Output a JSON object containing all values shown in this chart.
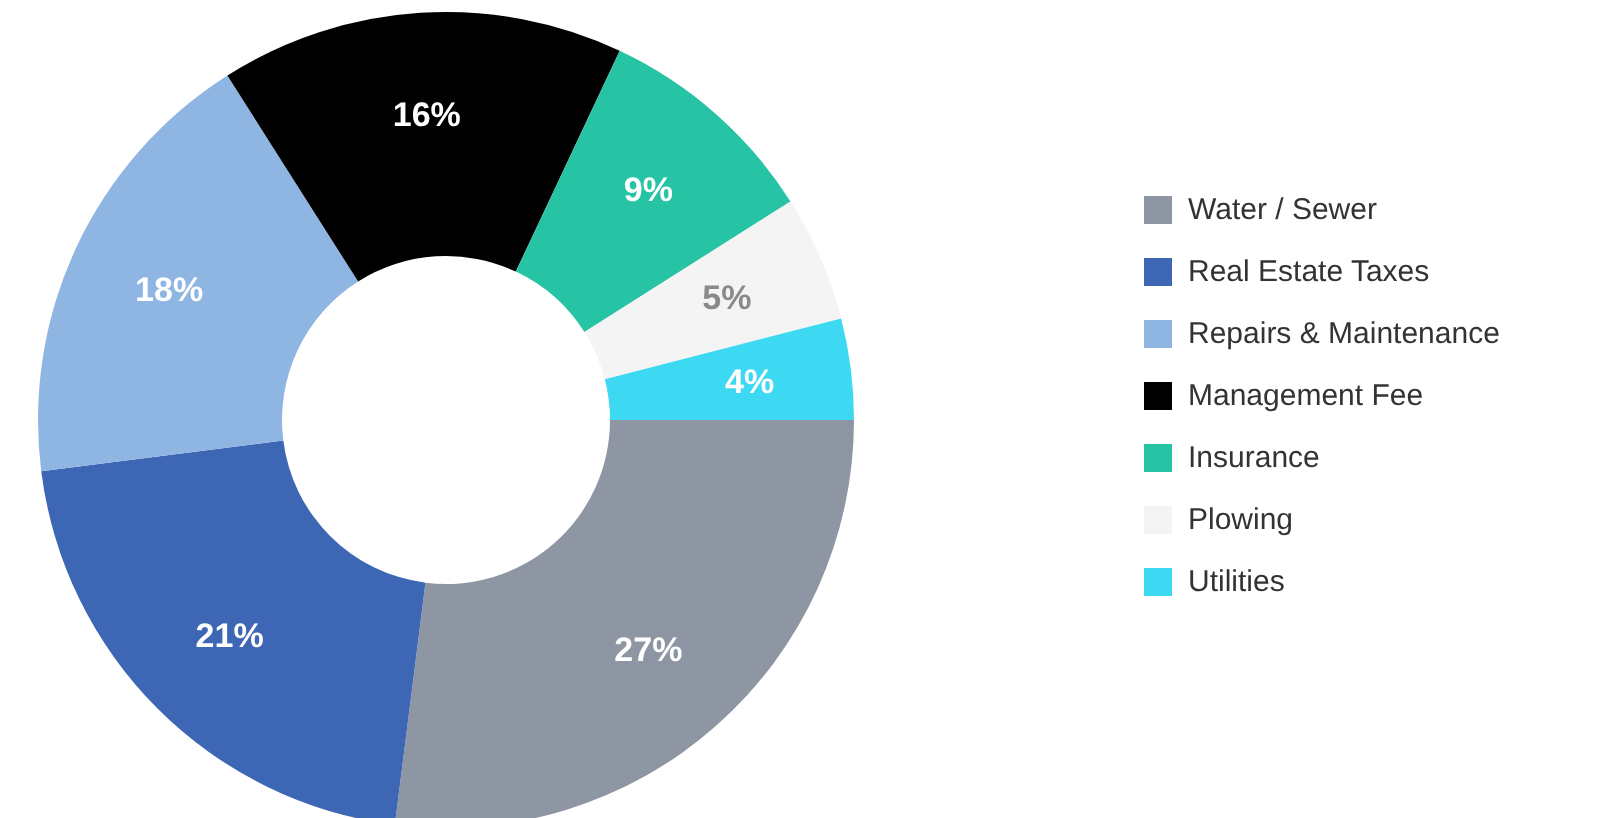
{
  "chart_data": {
    "type": "donut",
    "categories": [
      "Water / Sewer",
      "Real Estate Taxes",
      "Repairs & Maintenance",
      "Management Fee",
      "Insurance",
      "Plowing",
      "Utilities"
    ],
    "values": [
      27,
      21,
      18,
      16,
      9,
      5,
      4
    ],
    "colors": [
      "#8e96a3",
      "#3d66b5",
      "#8fb5e3",
      "#000000",
      "#26c4a4",
      "#f4f4f5",
      "#3dd8f2"
    ],
    "value_labels": [
      "27%",
      "21%",
      "18%",
      "16%",
      "9%",
      "5%",
      "4%"
    ],
    "legend": "right"
  }
}
